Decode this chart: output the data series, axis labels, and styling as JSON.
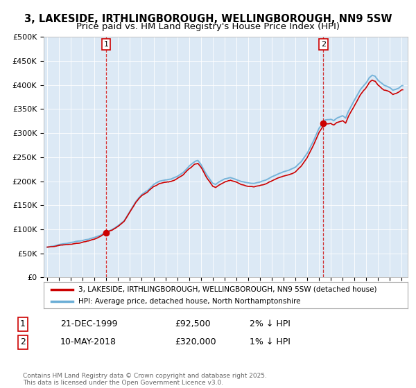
{
  "title": "3, LAKESIDE, IRTHLINGBOROUGH, WELLINGBOROUGH, NN9 5SW",
  "subtitle": "Price paid vs. HM Land Registry's House Price Index (HPI)",
  "title_fontsize": 10.5,
  "subtitle_fontsize": 9.5,
  "ylim": [
    0,
    500000
  ],
  "yticks": [
    0,
    50000,
    100000,
    150000,
    200000,
    250000,
    300000,
    350000,
    400000,
    450000,
    500000
  ],
  "ytick_labels": [
    "£0",
    "£50K",
    "£100K",
    "£150K",
    "£200K",
    "£250K",
    "£300K",
    "£350K",
    "£400K",
    "£450K",
    "£500K"
  ],
  "background_color": "#ffffff",
  "plot_bg_color": "#dce9f5",
  "grid_color": "#ffffff",
  "line_color_hpi": "#6baed6",
  "line_color_price": "#cc0000",
  "marker1_date_idx": 1999.97,
  "marker1_value": 92500,
  "marker2_date_idx": 2018.36,
  "marker2_value": 320000,
  "marker_color": "#cc0000",
  "dashed_line_color": "#cc0000",
  "legend_label_price": "3, LAKESIDE, IRTHLINGBOROUGH, WELLINGBOROUGH, NN9 5SW (detached house)",
  "legend_label_hpi": "HPI: Average price, detached house, North Northamptonshire",
  "note1_label": "1",
  "note1_date": "21-DEC-1999",
  "note1_price": "£92,500",
  "note1_hpi": "2% ↓ HPI",
  "note2_label": "2",
  "note2_date": "10-MAY-2018",
  "note2_price": "£320,000",
  "note2_hpi": "1% ↓ HPI",
  "footer": "Contains HM Land Registry data © Crown copyright and database right 2025.\nThis data is licensed under the Open Government Licence v3.0.",
  "xtick_years": [
    1995,
    1996,
    1997,
    1998,
    1999,
    2000,
    2001,
    2002,
    2003,
    2004,
    2005,
    2006,
    2007,
    2008,
    2009,
    2010,
    2011,
    2012,
    2013,
    2014,
    2015,
    2016,
    2017,
    2018,
    2019,
    2020,
    2021,
    2022,
    2023,
    2024,
    2025
  ]
}
